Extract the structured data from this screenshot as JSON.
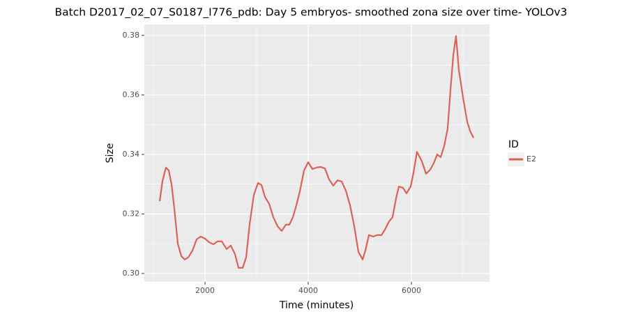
{
  "chart_data": {
    "type": "line",
    "title": "Batch D2017_02_07_S0187_I776_pdb: Day 5 embryos- smoothed zona size over time- YOLOv3",
    "x_label": "Time (minutes)",
    "y_label": "Size",
    "legend_title": "ID",
    "legend_position": "right",
    "x": [
      1122,
      1176,
      1243,
      1297,
      1351,
      1405,
      1473,
      1541,
      1608,
      1676,
      1757,
      1838,
      1919,
      2000,
      2081,
      2162,
      2243,
      2324,
      2419,
      2500,
      2581,
      2649,
      2730,
      2797,
      2865,
      2946,
      3027,
      3095,
      3162,
      3243,
      3324,
      3405,
      3486,
      3568,
      3635,
      3703,
      3770,
      3838,
      3919,
      4000,
      4081,
      4162,
      4243,
      4324,
      4405,
      4486,
      4568,
      4649,
      4730,
      4811,
      4892,
      4973,
      5054,
      5108,
      5176,
      5257,
      5338,
      5419,
      5486,
      5568,
      5635,
      5703,
      5757,
      5838,
      5905,
      5986,
      6041,
      6108,
      6203,
      6284,
      6365,
      6432,
      6500,
      6568,
      6635,
      6703,
      6757,
      6811,
      6865,
      6919,
      7000,
      7081,
      7135,
      7203
    ],
    "series": [
      {
        "name": "E2",
        "color": "#db6257",
        "values": [
          0.3243,
          0.3311,
          0.3356,
          0.3346,
          0.33,
          0.3218,
          0.31,
          0.3058,
          0.3047,
          0.3054,
          0.3077,
          0.3115,
          0.3124,
          0.3117,
          0.3105,
          0.3098,
          0.3108,
          0.3108,
          0.3082,
          0.3094,
          0.3065,
          0.3019,
          0.3019,
          0.3054,
          0.3166,
          0.3264,
          0.3304,
          0.3297,
          0.3257,
          0.3234,
          0.3189,
          0.3159,
          0.3143,
          0.3164,
          0.3164,
          0.3189,
          0.3229,
          0.3276,
          0.3346,
          0.3374,
          0.3351,
          0.3356,
          0.3358,
          0.3353,
          0.3316,
          0.3295,
          0.3313,
          0.3309,
          0.3278,
          0.3229,
          0.3159,
          0.3073,
          0.3047,
          0.3077,
          0.3129,
          0.3124,
          0.3129,
          0.3129,
          0.3147,
          0.3175,
          0.3189,
          0.3253,
          0.3292,
          0.3288,
          0.3269,
          0.3292,
          0.3339,
          0.3409,
          0.3377,
          0.3335,
          0.3349,
          0.337,
          0.34,
          0.3391,
          0.3428,
          0.3487,
          0.3615,
          0.3732,
          0.3798,
          0.3685,
          0.3592,
          0.351,
          0.348,
          0.3456
        ]
      }
    ],
    "xlim": [
      824,
      7514
    ],
    "xticks": [
      2000,
      4000,
      6000
    ],
    "ylim": [
      0.2972,
      0.3837
    ],
    "yticks": [
      {
        "value": 0.3,
        "label": "0.30"
      },
      0.32,
      0.34,
      0.36,
      0.38
    ],
    "grid": true,
    "minor_grid": true
  }
}
